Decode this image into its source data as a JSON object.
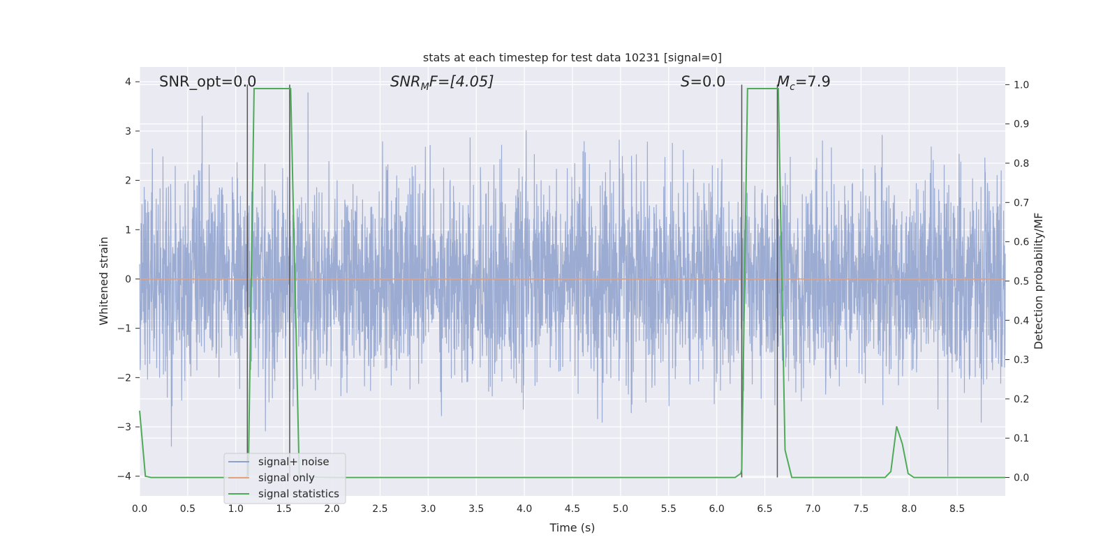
{
  "chart_data": {
    "type": "line",
    "title": "stats at each timestep for test data 10231 [signal=0]",
    "xlabel": "Time (s)",
    "ylabel": "Whitened strain",
    "y2label": "Detection probability/MF",
    "xlim": [
      0,
      9.0
    ],
    "ylim": [
      -4.4,
      4.3
    ],
    "y2lim": [
      -0.047,
      1.045
    ],
    "x_ticks": [
      0.0,
      0.5,
      1.0,
      1.5,
      2.0,
      2.5,
      3.0,
      3.5,
      4.0,
      4.5,
      5.0,
      5.5,
      6.0,
      6.5,
      7.0,
      7.5,
      8.0,
      8.5
    ],
    "x_tick_labels": [
      "0.0",
      "0.5",
      "1.0",
      "1.5",
      "2.0",
      "2.5",
      "3.0",
      "3.5",
      "4.0",
      "4.5",
      "5.0",
      "5.5",
      "6.0",
      "6.5",
      "7.0",
      "7.5",
      "8.0",
      "8.5"
    ],
    "y_ticks": [
      4,
      3,
      2,
      1,
      0,
      -1,
      -2,
      -3,
      -4
    ],
    "y_tick_labels": [
      "4",
      "3",
      "2",
      "1",
      "0",
      "−1",
      "−2",
      "−3",
      "−4"
    ],
    "y2_ticks": [
      1.0,
      0.9,
      0.8,
      0.7,
      0.6,
      0.5,
      0.4,
      0.3,
      0.2,
      0.1,
      0.0
    ],
    "y2_tick_labels": [
      "1.0",
      "0.9",
      "0.8",
      "0.7",
      "0.6",
      "0.5",
      "0.4",
      "0.3",
      "0.2",
      "0.1",
      "0.0"
    ],
    "grid": true,
    "legend_position": "lower-left",
    "annotations": {
      "snr_opt": "SNR_opt=0.0",
      "snr_mf_main": "SNR",
      "snr_mf_sub": "M",
      "snr_mf_rest": "F=[4.05]",
      "s_main": "S",
      "s_rest": "=0.0",
      "mc_main": "M",
      "mc_sub": "c",
      "mc_rest": "=7.9"
    },
    "vertical_lines_s": [
      1.12,
      1.56,
      6.26,
      6.63
    ],
    "series": [
      {
        "name": "signal+ noise",
        "color": "#8da0cb",
        "axis": "left",
        "noise_sigma": 1.0,
        "noise_points": 3600
      },
      {
        "name": "signal only",
        "color": "#e5a07c",
        "axis": "left",
        "x": [
          0,
          9.0
        ],
        "y": [
          0,
          0
        ]
      },
      {
        "name": "signal statistics",
        "color": "#4daa57",
        "axis": "right",
        "x": [
          0.0,
          0.06,
          0.12,
          1.1,
          1.13,
          1.19,
          1.57,
          1.66,
          2.0,
          6.19,
          6.25,
          6.26,
          6.32,
          6.64,
          6.71,
          6.78,
          7.75,
          7.81,
          7.87,
          7.93,
          7.99,
          8.05,
          9.0
        ],
        "y": [
          0.17,
          0.003,
          0.0,
          0.0,
          0.005,
          0.99,
          0.99,
          0.002,
          0.0,
          0.0,
          0.01,
          0.02,
          0.99,
          0.99,
          0.07,
          0.0,
          0.0,
          0.015,
          0.13,
          0.085,
          0.01,
          0.0,
          0.0
        ]
      }
    ]
  }
}
